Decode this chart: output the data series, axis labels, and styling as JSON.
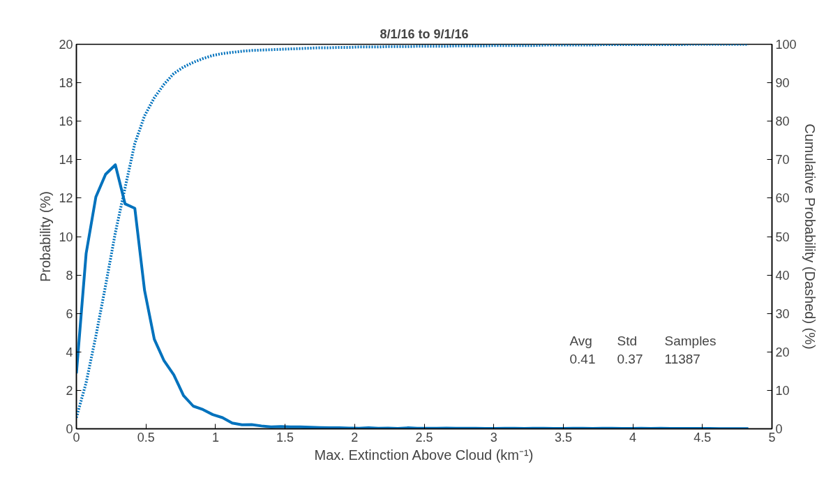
{
  "chart_data": {
    "type": "line",
    "title": "8/1/16 to 9/1/16",
    "xlabel": "Max. Extinction Above Cloud (km⁻¹)",
    "ylabel": "Probability (%)",
    "y2label": "Cumulative Probability (Dashed) (%)",
    "annotations": [
      "Avg",
      "Std",
      "Samples",
      "0.41",
      "0.37",
      "11387"
    ],
    "x": [
      0,
      0.07,
      0.14,
      0.21,
      0.28,
      0.35,
      0.42,
      0.49,
      0.56,
      0.63,
      0.7,
      0.77,
      0.84,
      0.91,
      0.98,
      1.05,
      1.12,
      1.19,
      1.26,
      1.33,
      1.4,
      1.47,
      1.54,
      1.61,
      1.68,
      1.75,
      1.82,
      1.89,
      1.96,
      2.03,
      2.1,
      2.17,
      2.24,
      2.31,
      2.38,
      2.45,
      2.52,
      2.59,
      2.66,
      2.73,
      2.8,
      2.87,
      2.94,
      3.01,
      3.08,
      3.15,
      3.22,
      3.29,
      3.36,
      3.43,
      3.5,
      3.57,
      3.64,
      3.71,
      3.78,
      3.85,
      3.92,
      3.99,
      4.06,
      4.13,
      4.2,
      4.27,
      4.34,
      4.41,
      4.48,
      4.55,
      4.62,
      4.69,
      4.76,
      4.83
    ],
    "series": [
      {
        "color": "#0072bd",
        "line_style": "solid",
        "values": [
          2.88,
          9.12,
          12.06,
          13.24,
          13.73,
          11.7,
          11.47,
          7.2,
          4.66,
          3.54,
          2.81,
          1.73,
          1.18,
          1.0,
          0.74,
          0.58,
          0.3,
          0.21,
          0.22,
          0.15,
          0.1,
          0.12,
          0.1,
          0.1,
          0.08,
          0.06,
          0.05,
          0.05,
          0.04,
          0.03,
          0.05,
          0.03,
          0.04,
          0.02,
          0.05,
          0.03,
          0.03,
          0.03,
          0.04,
          0.03,
          0.03,
          0.03,
          0.02,
          0.02,
          0.03,
          0.03,
          0.02,
          0.03,
          0.03,
          0.02,
          0.02,
          0.03,
          0.03,
          0.02,
          0.03,
          0.03,
          0.02,
          0.02,
          0.03,
          0.02,
          0.03,
          0.02,
          0.02,
          0.02,
          0.02,
          0.02,
          0.01,
          0.01,
          0.01,
          0.01
        ]
      },
      {
        "color": "#0072bd",
        "line_style": "dotted",
        "axis": "y2",
        "values": [
          2.9,
          12.0,
          24.1,
          37.3,
          51.0,
          62.7,
          74.2,
          81.4,
          86.1,
          89.6,
          92.4,
          94.1,
          95.3,
          96.3,
          97.1,
          97.6,
          97.9,
          98.2,
          98.4,
          98.5,
          98.6,
          98.7,
          98.8,
          98.9,
          99.0,
          99.1,
          99.1,
          99.2,
          99.2,
          99.3,
          99.3,
          99.3,
          99.4,
          99.4,
          99.4,
          99.5,
          99.5,
          99.5,
          99.5,
          99.6,
          99.6,
          99.6,
          99.6,
          99.7,
          99.7,
          99.7,
          99.7,
          99.7,
          99.8,
          99.8,
          99.8,
          99.8,
          99.8,
          99.8,
          99.9,
          99.9,
          99.9,
          99.9,
          99.9,
          99.9,
          99.9,
          99.9,
          99.9,
          100,
          100,
          100,
          100,
          100,
          100,
          100
        ]
      }
    ],
    "xlim": [
      0,
      5
    ],
    "xticks": [
      0,
      0.5,
      1,
      1.5,
      2,
      2.5,
      3,
      3.5,
      4,
      4.5,
      5
    ],
    "ylim": [
      0,
      20
    ],
    "yticks": [
      0,
      2,
      4,
      6,
      8,
      10,
      12,
      14,
      16,
      18,
      20
    ],
    "y2lim": [
      0,
      100
    ],
    "y2ticks": [
      0,
      10,
      20,
      30,
      40,
      50,
      60,
      70,
      80,
      90,
      100
    ],
    "grid": false,
    "marker": "none"
  }
}
